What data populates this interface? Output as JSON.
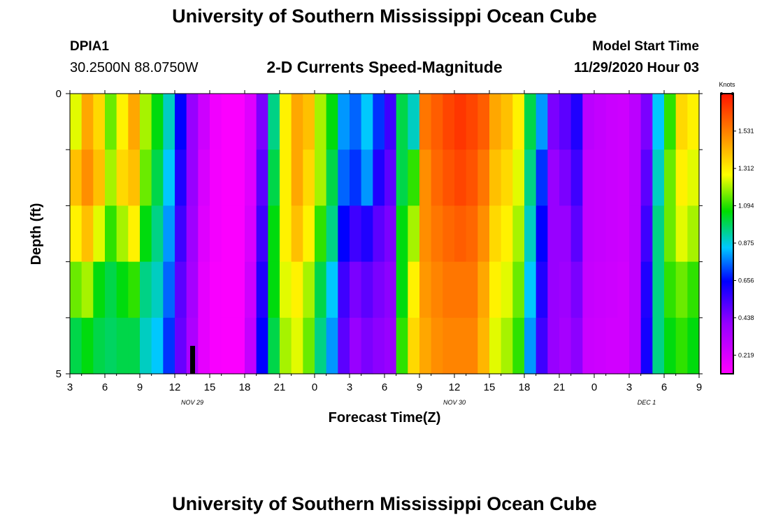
{
  "header": {
    "title": "University of Southern Mississippi Ocean Cube",
    "station": "DPIA1",
    "coords": "30.2500N 88.0750W",
    "model_start_label": "Model Start Time",
    "model_start_value": "11/29/2020 Hour 03"
  },
  "footer": {
    "title": "University of Southern Mississippi Ocean Cube"
  },
  "chart_data": {
    "type": "heatmap",
    "title": "2-D Currents Speed-Magnitude",
    "xlabel": "Forecast Time(Z)",
    "ylabel": "Depth (ft)",
    "y_tick_labels": [
      "0",
      "5"
    ],
    "ylim": [
      0,
      5
    ],
    "xlim_hours": [
      0,
      54
    ],
    "x_tick_labels": [
      "3",
      "6",
      "9",
      "12",
      "15",
      "18",
      "21",
      "0",
      "3",
      "6",
      "9",
      "12",
      "15",
      "18",
      "21",
      "0",
      "3",
      "6",
      "9"
    ],
    "date_labels": [
      {
        "text": "NOV  29",
        "hour": 10.5
      },
      {
        "text": "NOV  30",
        "hour": 33
      },
      {
        "text": "DEC  1",
        "hour": 49.5
      }
    ],
    "colorbar": {
      "unit": "Knots",
      "min": 0.11,
      "max": 1.75,
      "tick_values": [
        0.219,
        0.438,
        0.656,
        0.875,
        1.094,
        1.312,
        1.531
      ],
      "tick_labels": [
        "0.219",
        "0.438",
        "0.656",
        "0.875",
        "1.094",
        "1.312",
        "1.531"
      ]
    },
    "current_time_marker_hour": 10.5,
    "depth_levels": 5,
    "time_columns": 54,
    "values": [
      [
        1.25,
        1.45,
        1.35,
        1.15,
        1.3,
        1.45,
        1.2,
        1.05,
        0.9,
        0.65,
        0.4,
        0.25,
        0.15,
        0.12,
        0.12,
        0.2,
        0.45,
        0.95,
        1.3,
        1.45,
        1.4,
        1.2,
        1.05,
        0.8,
        0.75,
        0.85,
        0.7,
        0.55,
        1.0,
        0.9,
        1.55,
        1.6,
        1.65,
        1.68,
        1.65,
        1.6,
        1.45,
        1.4,
        1.3,
        1.0,
        0.8,
        0.45,
        0.5,
        0.6,
        0.3,
        0.28,
        0.26,
        0.25,
        0.3,
        0.45,
        0.85,
        1.1,
        1.35,
        1.3
      ],
      [
        1.4,
        1.5,
        1.4,
        1.2,
        1.35,
        1.4,
        1.15,
        1.0,
        0.85,
        0.6,
        0.4,
        0.22,
        0.14,
        0.12,
        0.12,
        0.2,
        0.5,
        1.0,
        1.3,
        1.45,
        1.35,
        1.2,
        1.0,
        0.75,
        0.7,
        0.8,
        0.6,
        0.5,
        1.0,
        1.1,
        1.5,
        1.58,
        1.62,
        1.65,
        1.62,
        1.55,
        1.4,
        1.35,
        1.25,
        0.95,
        0.7,
        0.4,
        0.45,
        0.55,
        0.28,
        0.27,
        0.26,
        0.25,
        0.3,
        0.5,
        0.9,
        1.15,
        1.3,
        1.25
      ],
      [
        1.3,
        1.4,
        1.25,
        1.1,
        1.2,
        1.3,
        1.05,
        0.95,
        0.8,
        0.55,
        0.38,
        0.2,
        0.14,
        0.12,
        0.12,
        0.22,
        0.55,
        1.05,
        1.3,
        1.4,
        1.3,
        1.1,
        0.95,
        0.65,
        0.55,
        0.6,
        0.5,
        0.45,
        1.05,
        1.2,
        1.5,
        1.55,
        1.58,
        1.6,
        1.58,
        1.5,
        1.35,
        1.3,
        1.2,
        0.9,
        0.65,
        0.4,
        0.4,
        0.5,
        0.28,
        0.27,
        0.26,
        0.25,
        0.3,
        0.55,
        0.95,
        1.15,
        1.25,
        1.2
      ],
      [
        1.15,
        1.2,
        1.05,
        1.0,
        1.05,
        1.1,
        0.95,
        0.9,
        0.75,
        0.5,
        0.36,
        0.18,
        0.13,
        0.12,
        0.12,
        0.25,
        0.6,
        1.05,
        1.25,
        1.3,
        1.2,
        1.0,
        0.85,
        0.55,
        0.45,
        0.5,
        0.45,
        0.42,
        1.05,
        1.3,
        1.48,
        1.52,
        1.55,
        1.55,
        1.55,
        1.45,
        1.3,
        1.25,
        1.15,
        0.85,
        0.6,
        0.4,
        0.38,
        0.45,
        0.27,
        0.26,
        0.25,
        0.24,
        0.3,
        0.6,
        0.95,
        1.1,
        1.15,
        1.1
      ],
      [
        1.0,
        1.05,
        1.0,
        0.98,
        1.0,
        1.0,
        0.9,
        0.85,
        0.7,
        0.48,
        0.34,
        0.18,
        0.13,
        0.12,
        0.12,
        0.28,
        0.65,
        1.0,
        1.2,
        1.25,
        1.15,
        0.95,
        0.8,
        0.5,
        0.4,
        0.45,
        0.42,
        0.4,
        1.1,
        1.35,
        1.45,
        1.5,
        1.52,
        1.52,
        1.52,
        1.42,
        1.25,
        1.2,
        1.1,
        0.8,
        0.55,
        0.4,
        0.36,
        0.42,
        0.26,
        0.25,
        0.24,
        0.24,
        0.3,
        0.62,
        0.95,
        1.05,
        1.1,
        1.05
      ]
    ]
  }
}
